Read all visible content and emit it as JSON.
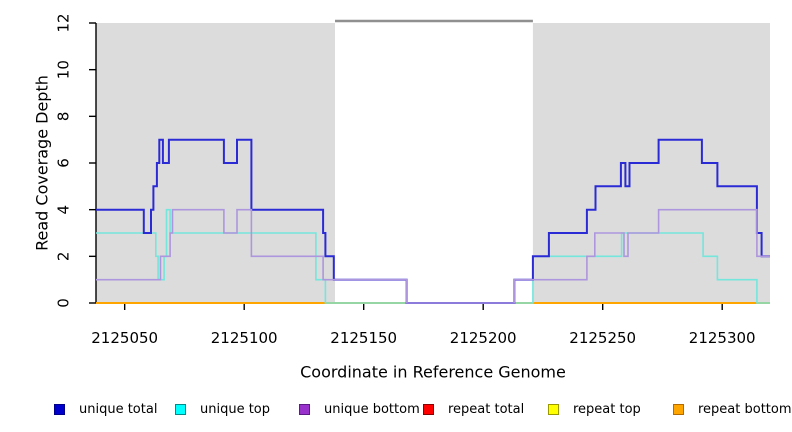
{
  "chart_data": {
    "type": "line",
    "subtype": "step-coverage",
    "title": "",
    "xlabel": "Coordinate in Reference Genome",
    "ylabel": "Read Coverage Depth",
    "x_range": [
      2125038,
      2125320
    ],
    "y_range": [
      0,
      12
    ],
    "x_ticks": [
      2125050,
      2125100,
      2125150,
      2125200,
      2125250,
      2125300
    ],
    "y_ticks": [
      0,
      2,
      4,
      6,
      8,
      10,
      12
    ],
    "grid": "off",
    "legend_position": "bottom",
    "shaded_regions": [
      {
        "name": "left-gray-region",
        "x1": 2125038,
        "x2": 2125138,
        "color": "#DCDCDC"
      },
      {
        "name": "right-gray-region",
        "x1": 2125220.8,
        "x2": 2125320,
        "color": "#DCDCDC"
      }
    ],
    "gap_top_line": {
      "x1": 2125138,
      "x2": 2125220.8,
      "color": "#909090"
    },
    "draw_order": [
      3,
      4,
      5,
      1,
      0,
      2
    ],
    "series": [
      {
        "name": "unique total",
        "line_color": "#2B2BD5",
        "legend_color": "#0000CD",
        "legend_border": "#00008B",
        "line_width": 2,
        "points": [
          [
            2125038,
            4
          ],
          [
            2125058,
            3
          ],
          [
            2125061,
            4
          ],
          [
            2125062,
            5
          ],
          [
            2125063.5,
            6
          ],
          [
            2125064.5,
            7
          ],
          [
            2125066,
            6
          ],
          [
            2125068.5,
            7
          ],
          [
            2125091.5,
            6
          ],
          [
            2125097,
            7
          ],
          [
            2125103,
            4
          ],
          [
            2125133,
            3
          ],
          [
            2125134,
            2
          ],
          [
            2125137.5,
            1
          ],
          [
            2125168,
            0
          ],
          [
            2125213,
            1
          ],
          [
            2125220.8,
            2
          ],
          [
            2125227.5,
            3
          ],
          [
            2125243.4,
            4
          ],
          [
            2125247,
            5
          ],
          [
            2125257.6,
            6
          ],
          [
            2125259.5,
            5
          ],
          [
            2125261.2,
            6
          ],
          [
            2125273.4,
            7
          ],
          [
            2125291.5,
            6
          ],
          [
            2125298,
            5
          ],
          [
            2125314.5,
            3
          ],
          [
            2125316.5,
            2
          ],
          [
            2125320,
            2
          ]
        ]
      },
      {
        "name": "unique top",
        "line_color": "#74E6DC",
        "legend_color": "#00FFFF",
        "legend_border": "#008B8B",
        "line_width": 1.6,
        "points": [
          [
            2125038,
            3
          ],
          [
            2125063,
            2
          ],
          [
            2125064,
            1
          ],
          [
            2125066.5,
            2
          ],
          [
            2125067.5,
            4
          ],
          [
            2125069,
            3
          ],
          [
            2125130,
            1
          ],
          [
            2125134,
            0
          ],
          [
            2125220.8,
            2
          ],
          [
            2125257.9,
            3
          ],
          [
            2125292,
            2
          ],
          [
            2125298,
            1
          ],
          [
            2125314.5,
            0
          ],
          [
            2125320,
            0
          ]
        ]
      },
      {
        "name": "unique bottom",
        "line_color": "#AD96DD",
        "legend_color": "#9932CC",
        "legend_border": "#5E1B87",
        "line_width": 1.6,
        "points": [
          [
            2125038,
            1
          ],
          [
            2125065,
            2
          ],
          [
            2125069,
            3
          ],
          [
            2125070,
            4
          ],
          [
            2125091.5,
            3
          ],
          [
            2125097,
            4
          ],
          [
            2125103,
            2
          ],
          [
            2125133,
            1
          ],
          [
            2125168,
            0
          ],
          [
            2125213,
            1
          ],
          [
            2125243.4,
            2
          ],
          [
            2125246.7,
            3
          ],
          [
            2125258.9,
            2
          ],
          [
            2125260.6,
            3
          ],
          [
            2125273.4,
            4
          ],
          [
            2125314.5,
            2
          ],
          [
            2125320,
            2
          ]
        ]
      },
      {
        "name": "repeat total",
        "line_color": "#CC0000",
        "legend_color": "#FF0000",
        "legend_border": "#8B0000",
        "line_width": 1.6,
        "points": [
          [
            2125038,
            0
          ],
          [
            2125320,
            0
          ]
        ]
      },
      {
        "name": "repeat top",
        "line_color": "#F5F500",
        "legend_color": "#FFFF00",
        "legend_border": "#9A9A00",
        "line_width": 1.6,
        "points": [
          [
            2125038,
            0
          ],
          [
            2125320,
            0
          ]
        ]
      },
      {
        "name": "repeat bottom",
        "line_color": "#FFA500",
        "legend_color": "#FFA500",
        "legend_border": "#B36B00",
        "line_width": 2,
        "points": [
          [
            2125038,
            0
          ],
          [
            2125320,
            0
          ]
        ]
      }
    ]
  },
  "legend": {
    "items": [
      {
        "label": "unique total"
      },
      {
        "label": "unique top"
      },
      {
        "label": "unique bottom"
      },
      {
        "label": "repeat total"
      },
      {
        "label": "repeat top"
      },
      {
        "label": "repeat bottom"
      }
    ]
  }
}
